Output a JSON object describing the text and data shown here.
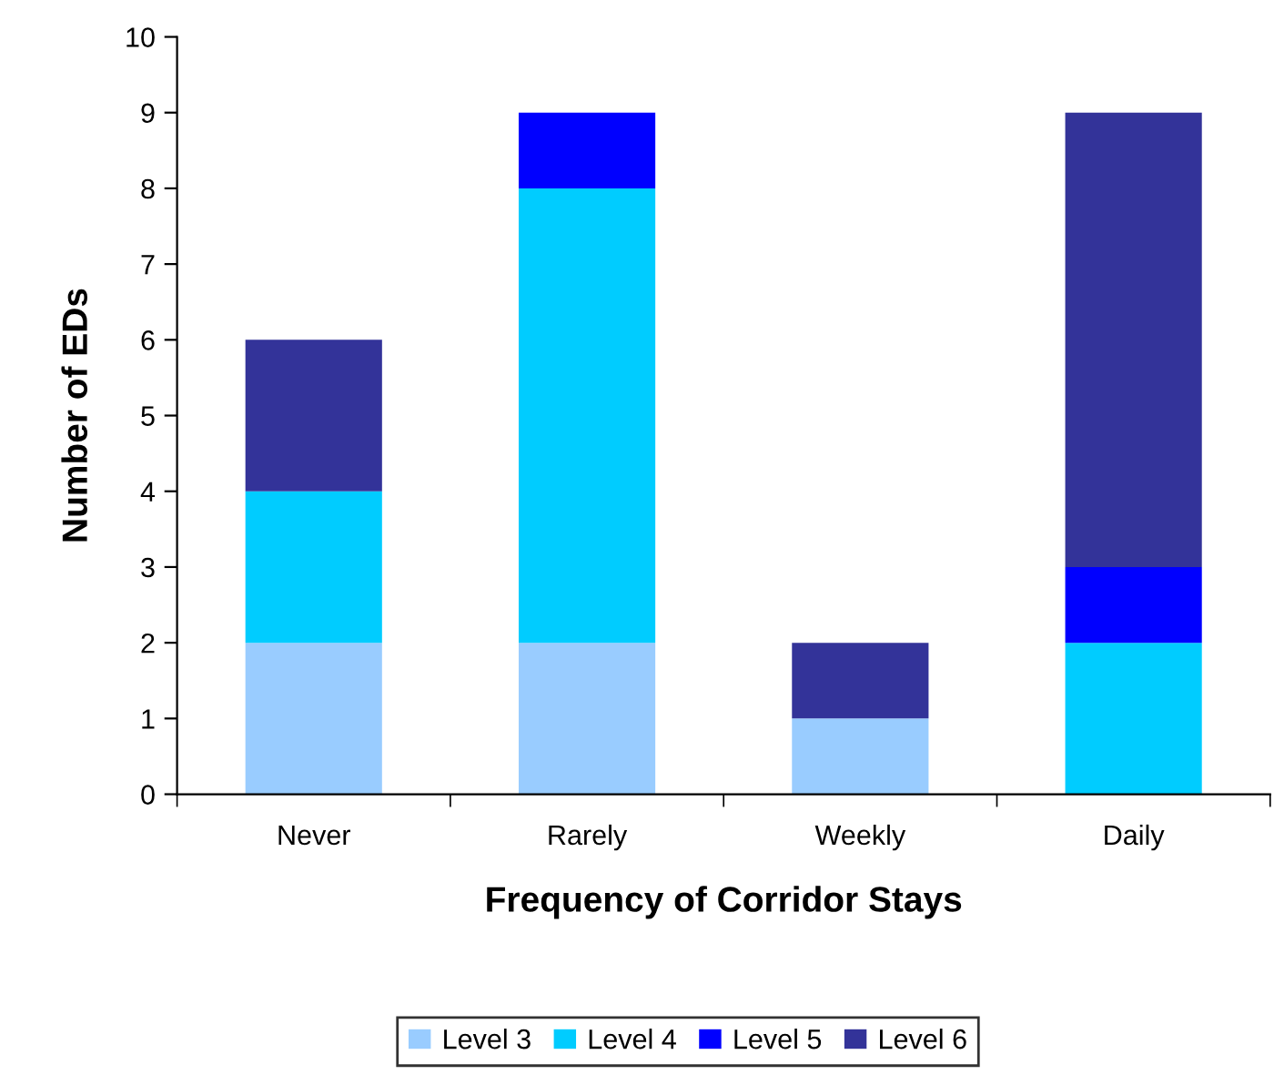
{
  "chart_data": {
    "type": "bar",
    "stacked": true,
    "xlabel": "Frequency of Corridor Stays",
    "ylabel": "Number of EDs",
    "categories": [
      "Never",
      "Rarely",
      "Weekly",
      "Daily"
    ],
    "series": [
      {
        "name": "Level 3",
        "color": "#99ccff",
        "values": [
          2,
          2,
          1,
          0
        ]
      },
      {
        "name": "Level 4",
        "color": "#00ccff",
        "values": [
          2,
          6,
          0,
          2
        ]
      },
      {
        "name": "Level 5",
        "color": "#0000ff",
        "values": [
          0,
          1,
          0,
          1
        ]
      },
      {
        "name": "Level 6",
        "color": "#333399",
        "values": [
          2,
          0,
          1,
          6
        ]
      }
    ],
    "ylim": [
      0,
      10
    ],
    "yticks": [
      0,
      1,
      2,
      3,
      4,
      5,
      6,
      7,
      8,
      9,
      10
    ],
    "grid": false,
    "legend": "bottom"
  }
}
